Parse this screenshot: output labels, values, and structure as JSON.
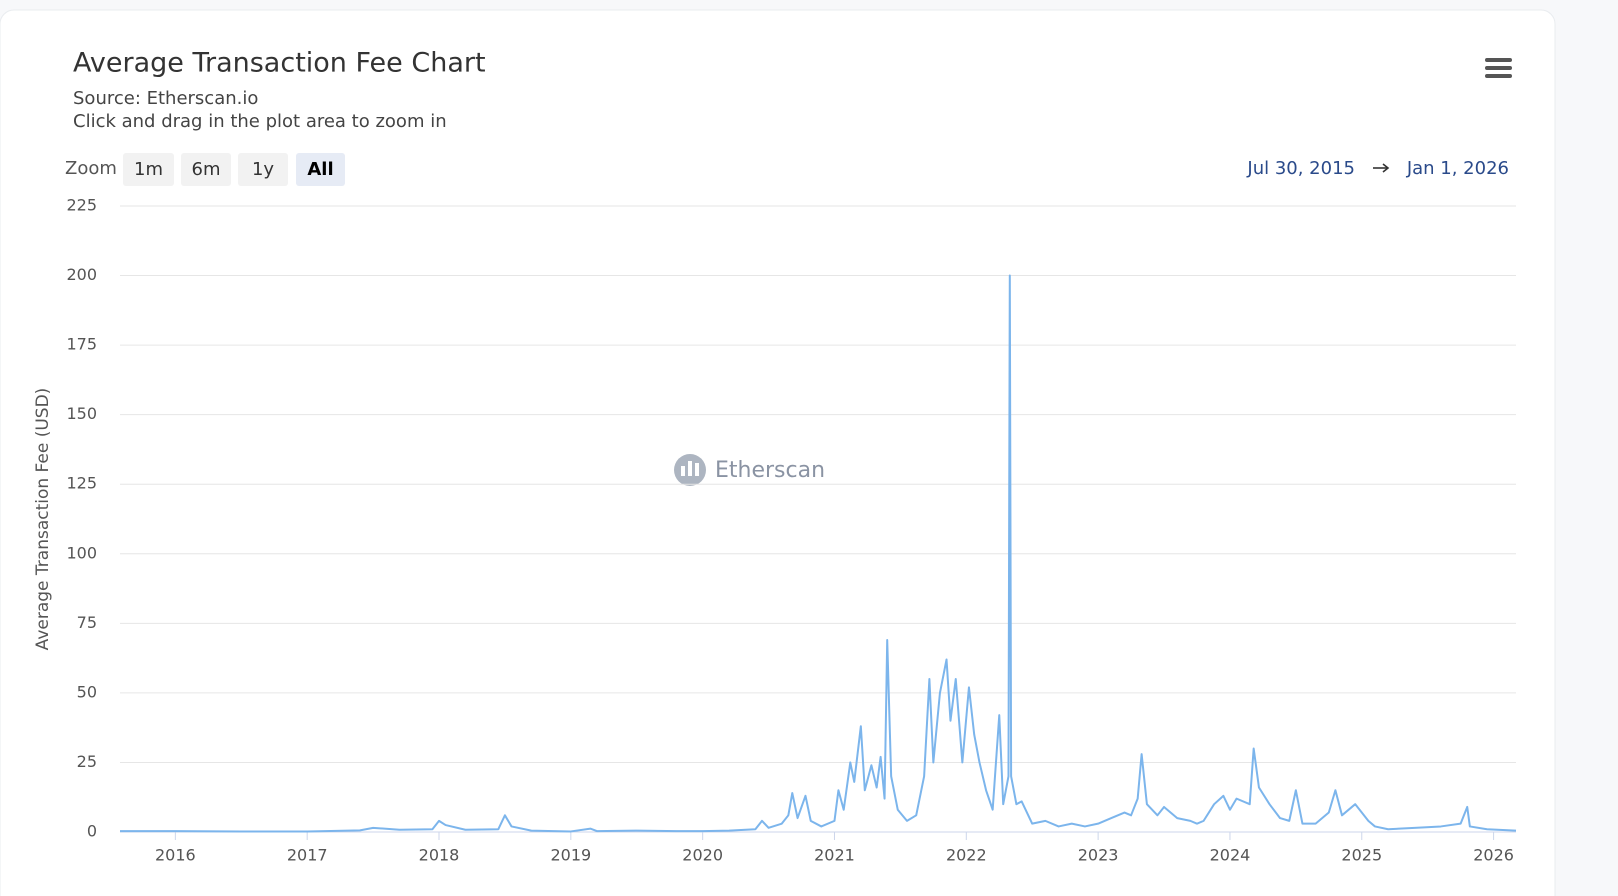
{
  "chart_data": {
    "type": "line",
    "title": "Average Transaction Fee Chart",
    "subtitle": "Source: Etherscan.io",
    "caption": "Click and drag in the plot area to zoom in",
    "y_label": "Average Transaction Fee (USD)",
    "watermark": "Etherscan",
    "range_selector": {
      "label": "Zoom",
      "buttons": [
        "1m",
        "6m",
        "1y",
        "All"
      ],
      "selected": 3,
      "from": "Jul 30, 2015",
      "to": "Jan 1, 2026"
    },
    "color": "#7cb5ec",
    "grid": true,
    "xlim": [
      2015.58,
      2026.17
    ],
    "xticks": [
      2016,
      2017,
      2018,
      2019,
      2020,
      2021,
      2022,
      2023,
      2024,
      2025,
      2026
    ],
    "ylim": [
      0,
      225
    ],
    "yticks": [
      0,
      25,
      50,
      75,
      100,
      125,
      150,
      175,
      200,
      225
    ],
    "x": [
      2015.58,
      2016,
      2016.5,
      2017,
      2017.4,
      2017.5,
      2017.7,
      2017.95,
      2018.0,
      2018.05,
      2018.2,
      2018.45,
      2018.5,
      2018.55,
      2018.7,
      2019,
      2019.15,
      2019.2,
      2019.5,
      2019.8,
      2020,
      2020.2,
      2020.4,
      2020.45,
      2020.5,
      2020.6,
      2020.65,
      2020.68,
      2020.72,
      2020.78,
      2020.82,
      2020.9,
      2021.0,
      2021.03,
      2021.07,
      2021.12,
      2021.15,
      2021.2,
      2021.23,
      2021.28,
      2021.32,
      2021.35,
      2021.38,
      2021.4,
      2021.43,
      2021.48,
      2021.55,
      2021.62,
      2021.68,
      2021.72,
      2021.75,
      2021.8,
      2021.85,
      2021.88,
      2021.92,
      2021.97,
      2022.02,
      2022.06,
      2022.1,
      2022.15,
      2022.2,
      2022.25,
      2022.28,
      2022.32,
      2022.33,
      2022.34,
      2022.38,
      2022.42,
      2022.5,
      2022.6,
      2022.7,
      2022.8,
      2022.9,
      2023.0,
      2023.1,
      2023.2,
      2023.25,
      2023.3,
      2023.33,
      2023.37,
      2023.45,
      2023.5,
      2023.6,
      2023.7,
      2023.75,
      2023.8,
      2023.88,
      2023.95,
      2024.0,
      2024.05,
      2024.15,
      2024.18,
      2024.22,
      2024.3,
      2024.38,
      2024.45,
      2024.5,
      2024.55,
      2024.65,
      2024.75,
      2024.8,
      2024.85,
      2024.95,
      2025.0,
      2025.05,
      2025.1,
      2025.2,
      2025.4,
      2025.6,
      2025.75,
      2025.8,
      2025.82,
      2025.95,
      2026.17
    ],
    "values": [
      0.3,
      0.3,
      0.2,
      0.2,
      0.6,
      1.5,
      0.8,
      1,
      4,
      2.5,
      0.8,
      1,
      6,
      2,
      0.5,
      0.2,
      1.2,
      0.3,
      0.5,
      0.3,
      0.3,
      0.5,
      1,
      4,
      1.5,
      3,
      6,
      14,
      5,
      13,
      4,
      2,
      4,
      15,
      8,
      25,
      18,
      38,
      15,
      24,
      16,
      27,
      12,
      69,
      20,
      8,
      4,
      6,
      20,
      55,
      25,
      50,
      62,
      40,
      55,
      25,
      52,
      35,
      25,
      15,
      8,
      42,
      10,
      20,
      200,
      20,
      10,
      11,
      3,
      4,
      2,
      3,
      2,
      3,
      5,
      7,
      6,
      12,
      28,
      10,
      6,
      9,
      5,
      4,
      3,
      4,
      10,
      13,
      8,
      12,
      10,
      30,
      16,
      10,
      5,
      4,
      15,
      3,
      3,
      7,
      15,
      6,
      10,
      7,
      4,
      2,
      1,
      1.5,
      2,
      3,
      9,
      2,
      1,
      0.5
    ]
  }
}
